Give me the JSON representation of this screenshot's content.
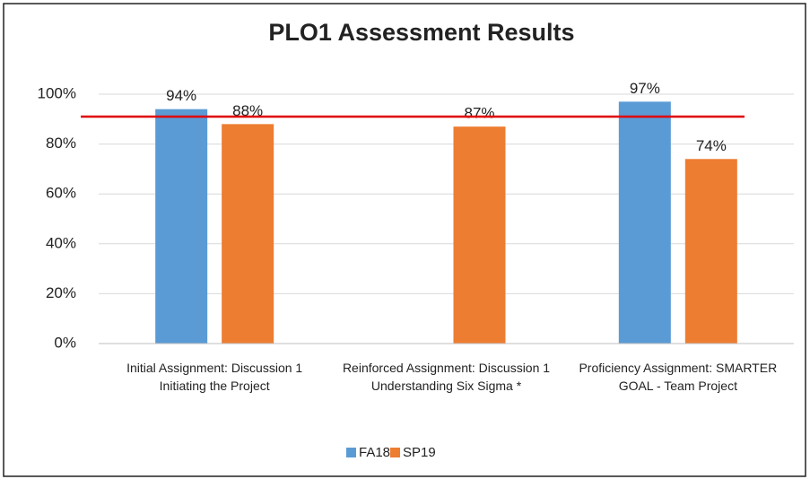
{
  "chart_data": {
    "type": "bar",
    "title": "PLO1 Assessment Results",
    "categories": [
      "Initial Assignment: Discussion 1 Initiating the Project",
      "Reinforced Assignment: Discussion 1 Understanding Six Sigma *",
      "Proficiency Assignment: SMARTER GOAL - Team Project"
    ],
    "series": [
      {
        "name": "FA18",
        "color": "#5b9bd5",
        "values": [
          94,
          null,
          97
        ],
        "value_labels": [
          "94%",
          null,
          "97%"
        ]
      },
      {
        "name": "SP19",
        "color": "#ed7d31",
        "values": [
          88,
          87,
          74
        ],
        "value_labels": [
          "88%",
          "87%",
          "74%"
        ]
      }
    ],
    "ylim": [
      0,
      100
    ],
    "yticks": [
      {
        "value": 0,
        "label": "0%"
      },
      {
        "value": 20,
        "label": "20%"
      },
      {
        "value": 40,
        "label": "40%"
      },
      {
        "value": 60,
        "label": "60%"
      },
      {
        "value": 80,
        "label": "80%"
      },
      {
        "value": 100,
        "label": "100%"
      }
    ],
    "grid": true,
    "target_line": {
      "value": 91,
      "color": "#e00000"
    },
    "legend": "bottom"
  }
}
